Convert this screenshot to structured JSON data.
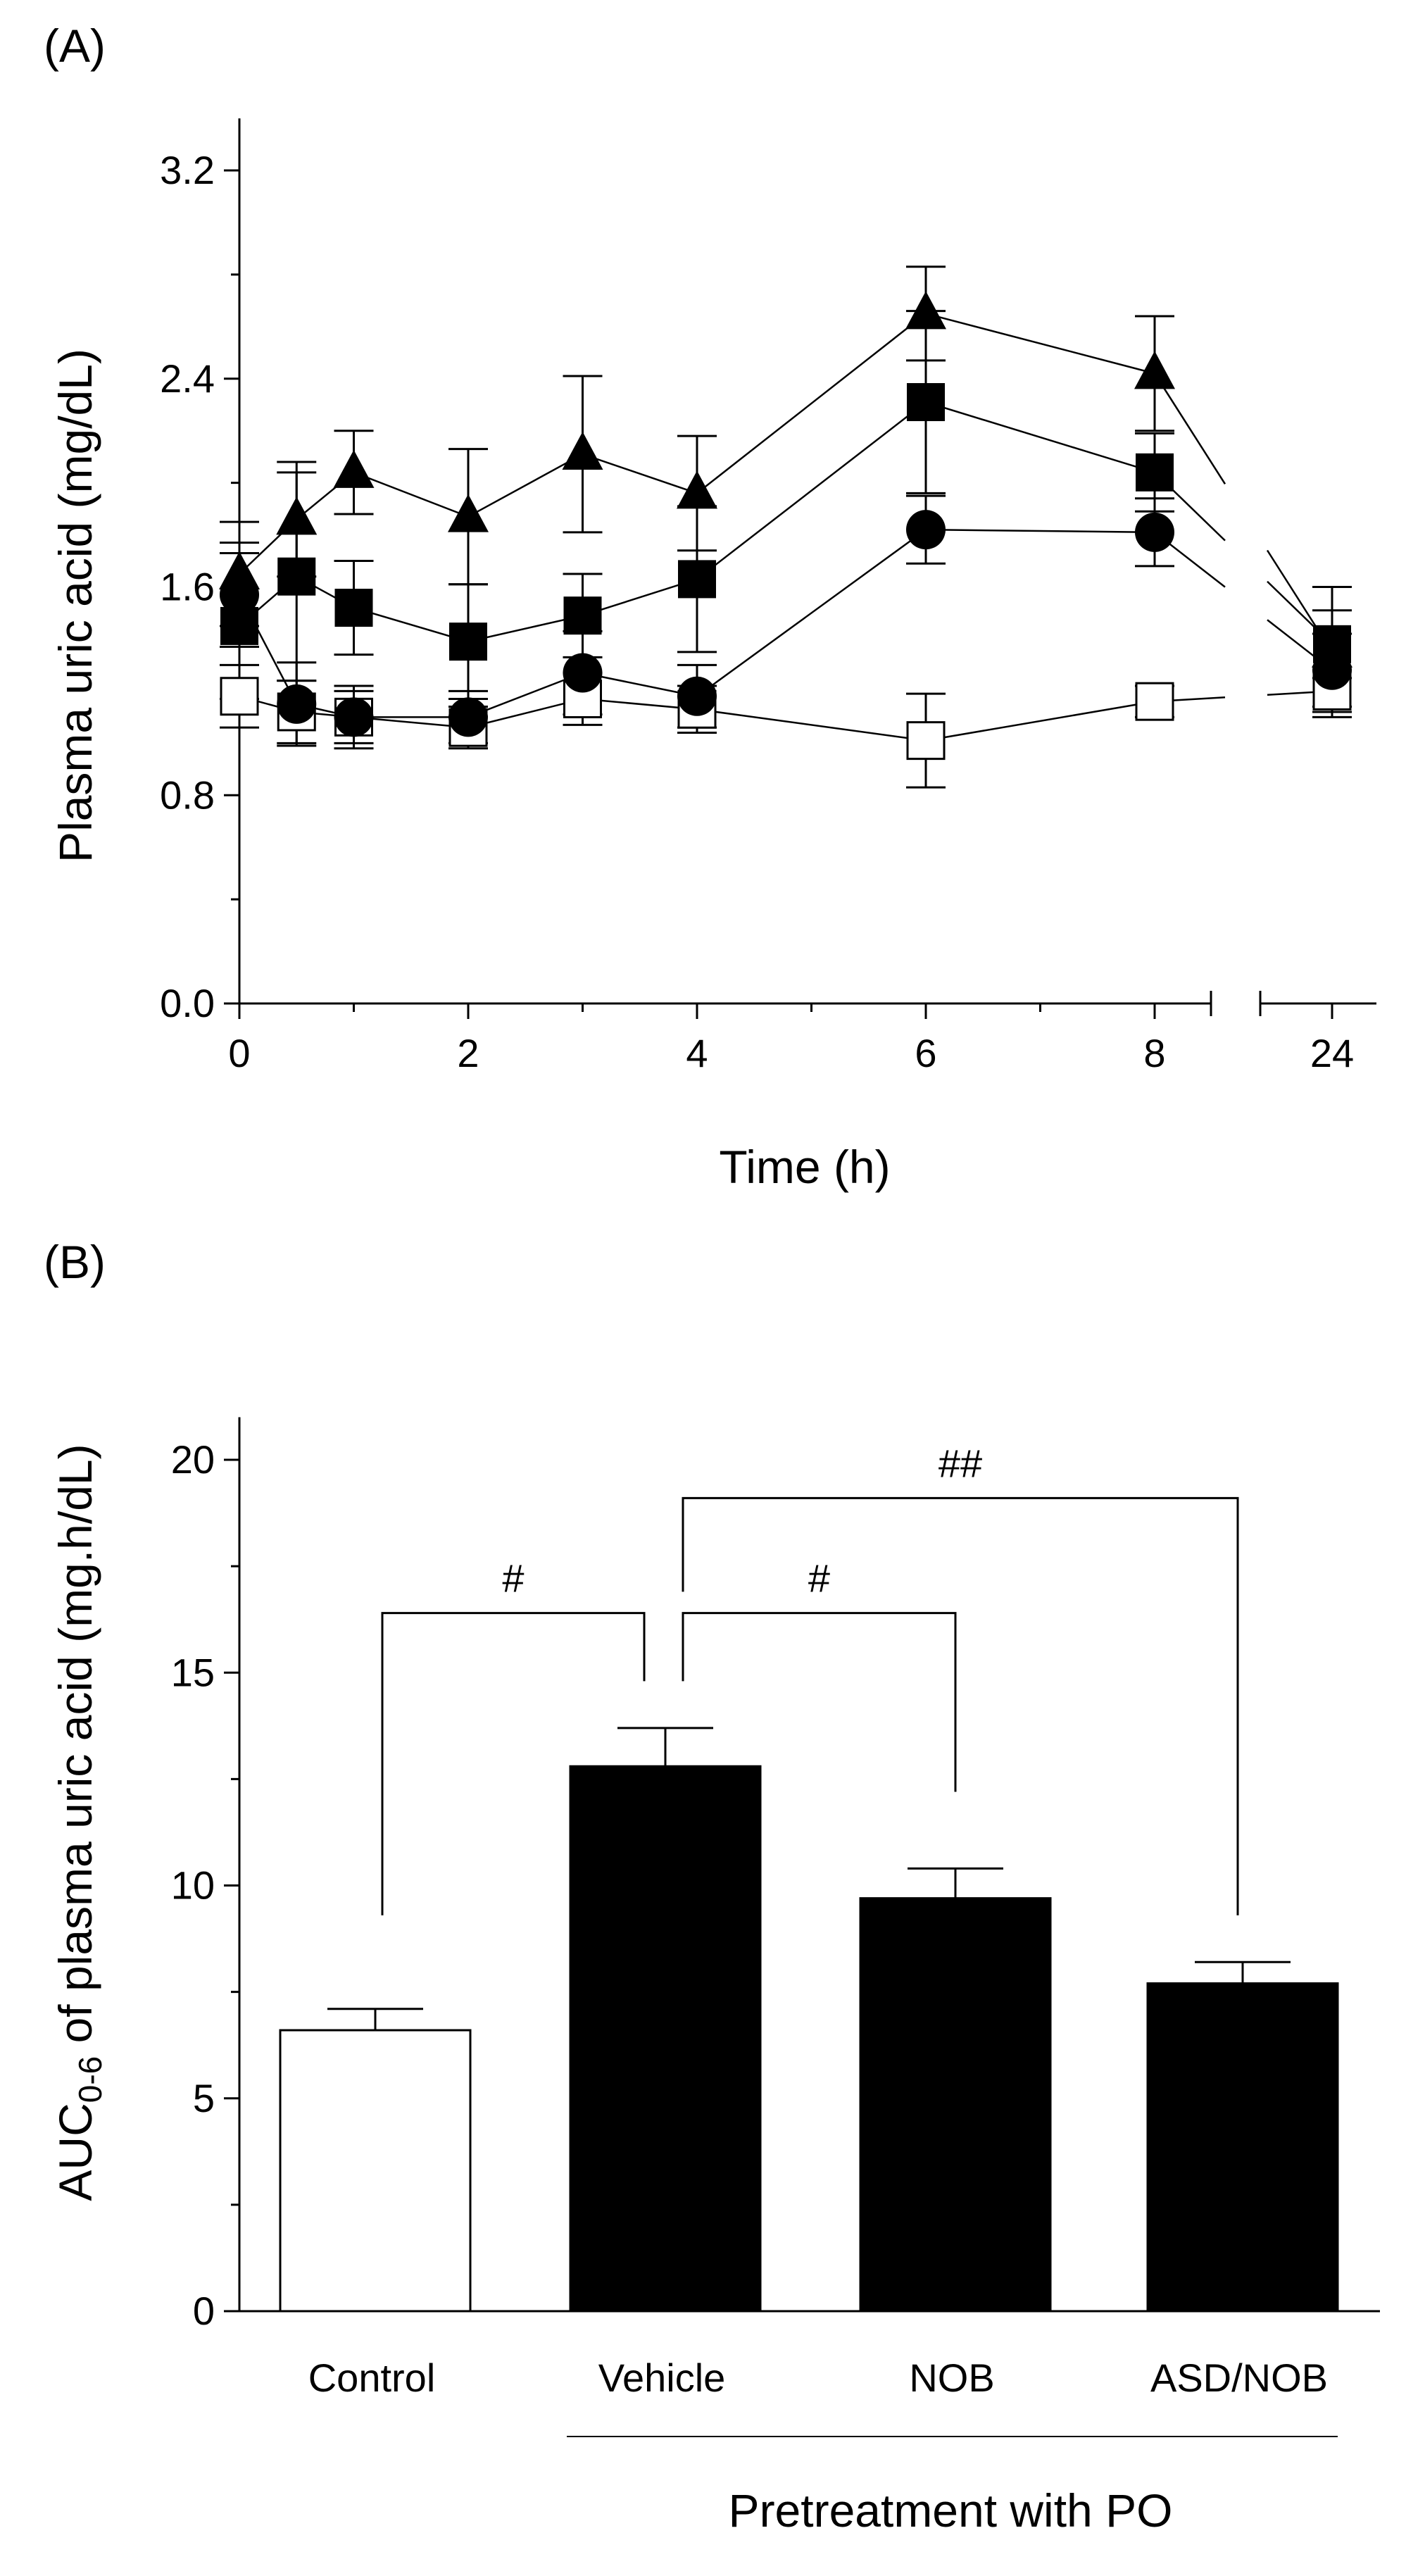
{
  "chart_data": [
    {
      "panel": "(A)",
      "type": "line",
      "xlabel": "Time (h)",
      "ylabel": "Plasma uric acid (mg/dL)",
      "ylim": [
        0,
        3.4
      ],
      "y_ticks": [
        "0.0",
        "0.8",
        "1.6",
        "2.4",
        "3.2"
      ],
      "x_ticks": [
        "0",
        "2",
        "4",
        "6",
        "8",
        "24"
      ],
      "x_axis_break": "between 8 and 24",
      "grid": false,
      "legend": "none",
      "x": [
        0,
        0.5,
        1,
        2,
        3,
        4,
        6,
        8,
        24
      ],
      "series": [
        {
          "name": "open-square",
          "marker": "square-open",
          "values": [
            1.18,
            1.12,
            1.1,
            1.06,
            1.17,
            1.13,
            1.01,
            1.16,
            1.2
          ],
          "errors": [
            0.12,
            0.12,
            0.1,
            0.08,
            0.1,
            0.09,
            0.18,
            0.06,
            0.08
          ]
        },
        {
          "name": "filled-circle",
          "marker": "circle-filled",
          "values": [
            1.57,
            1.15,
            1.1,
            1.1,
            1.27,
            1.18,
            1.82,
            1.81,
            1.28
          ],
          "errors": [
            0.2,
            0.16,
            0.12,
            0.1,
            0.16,
            0.12,
            0.13,
            0.13,
            0.14
          ]
        },
        {
          "name": "filled-square",
          "marker": "square-filled",
          "values": [
            1.45,
            1.64,
            1.52,
            1.39,
            1.49,
            1.63,
            2.31,
            2.04,
            1.38
          ],
          "errors": [
            0.28,
            0.4,
            0.18,
            0.22,
            0.16,
            0.28,
            0.35,
            0.15,
            0.13
          ]
        },
        {
          "name": "filled-triangle",
          "marker": "triangle-filled",
          "values": [
            1.65,
            1.86,
            2.04,
            1.87,
            2.11,
            1.96,
            2.65,
            2.42,
            1.35
          ],
          "errors": [
            0.2,
            0.22,
            0.16,
            0.26,
            0.3,
            0.22,
            0.18,
            0.22,
            0.25
          ]
        }
      ]
    },
    {
      "panel": "(B)",
      "type": "bar",
      "ylabel_main": "AUC",
      "ylabel_sub": "0-6",
      "ylabel_rest": " of plasma uric acid (mg.h/dL)",
      "ylim": [
        0,
        21
      ],
      "y_ticks": [
        "0",
        "5",
        "10",
        "15",
        "20"
      ],
      "categories": [
        "Control",
        "Vehicle",
        "NOB",
        "ASD/NOB"
      ],
      "values": [
        6.6,
        12.8,
        9.7,
        7.7
      ],
      "errors": [
        0.5,
        0.9,
        0.7,
        0.5
      ],
      "fills": [
        "#ffffff",
        "#000000",
        "#000000",
        "#000000"
      ],
      "group_label": "Pretreatment with PO",
      "significance": [
        {
          "from": "Control",
          "to": "Vehicle",
          "label": "#"
        },
        {
          "from": "Vehicle",
          "to": "NOB",
          "label": "#"
        },
        {
          "from": "Vehicle",
          "to": "ASD/NOB",
          "label": "##"
        }
      ],
      "grid": false,
      "legend": "none"
    }
  ]
}
